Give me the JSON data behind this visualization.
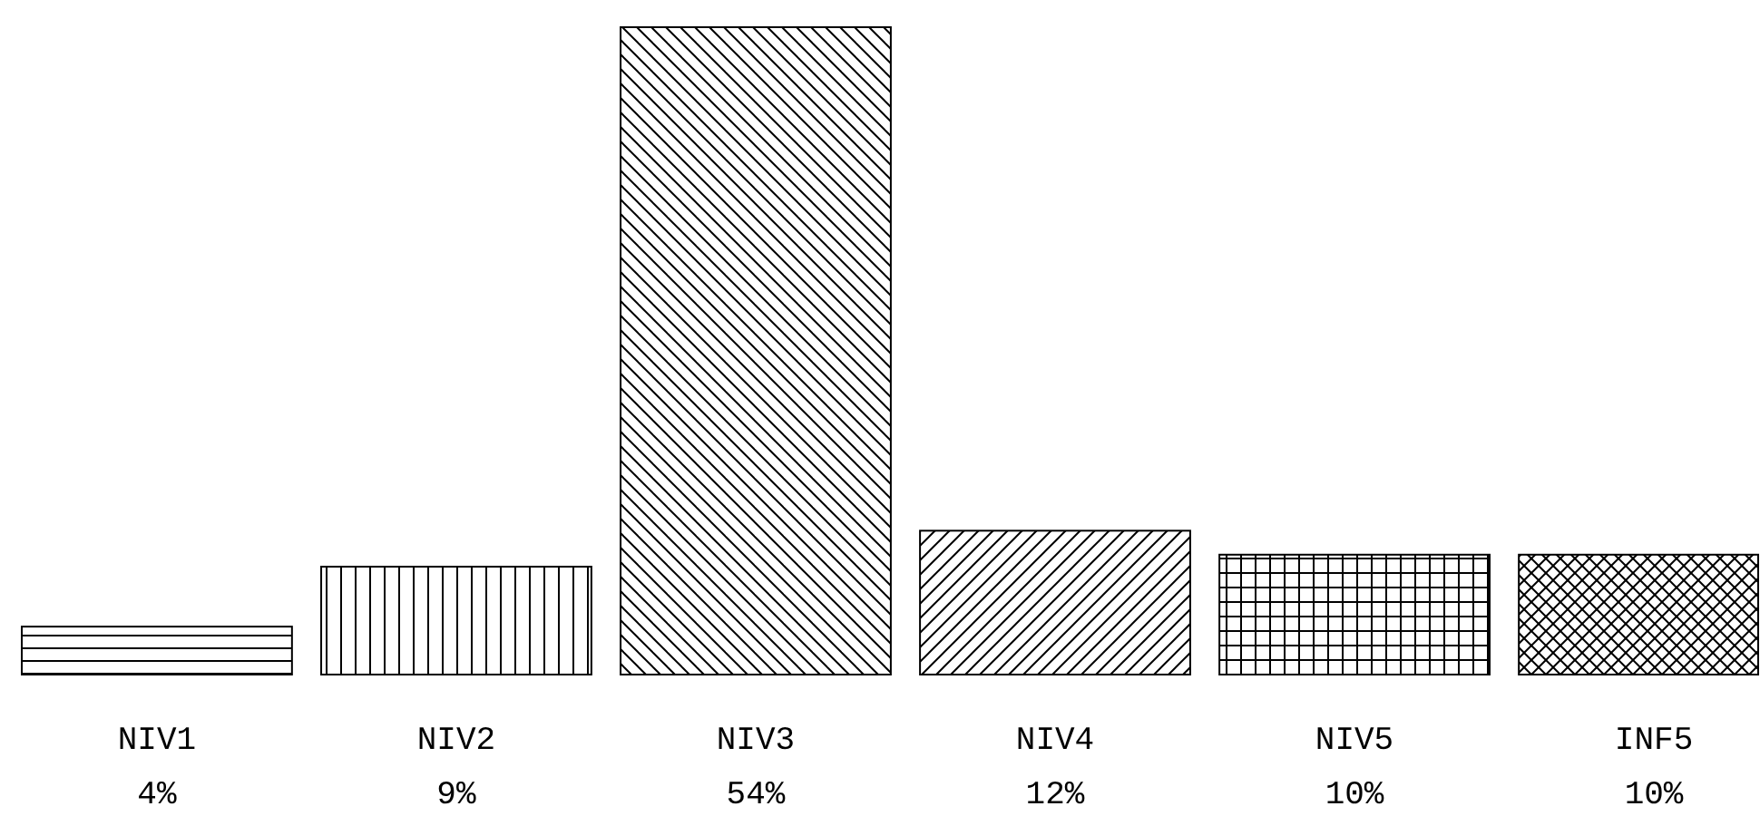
{
  "chart_data": {
    "type": "bar",
    "categories": [
      "NIV1",
      "NIV2",
      "NIV3",
      "NIV4",
      "NIV5",
      "INF5"
    ],
    "values": [
      4,
      9,
      54,
      12,
      10,
      10
    ],
    "value_labels": [
      "4%",
      "9%",
      "54%",
      "12%",
      "10%",
      "10%"
    ],
    "colors": [
      "#000000",
      "#000000",
      "#000000",
      "#000000",
      "#000000",
      "#000000"
    ]
  }
}
